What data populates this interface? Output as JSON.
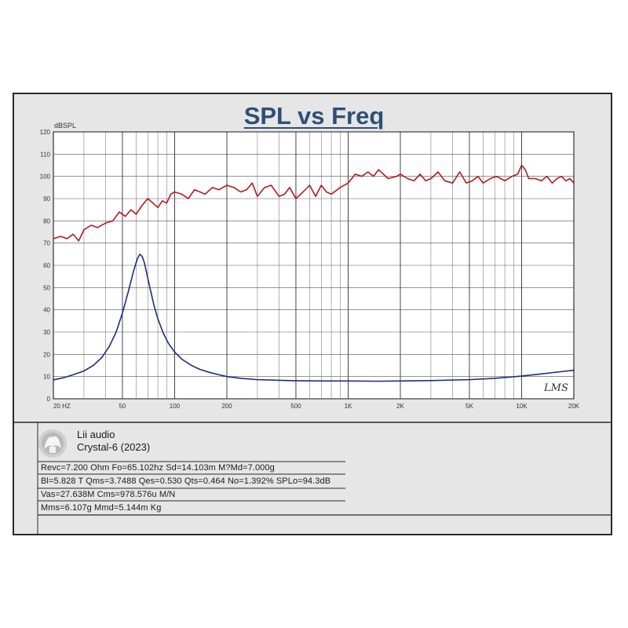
{
  "chart_data": {
    "type": "line",
    "title": "SPL vs Freq",
    "ylabel": "dBSPL",
    "xlabel": "",
    "xscale": "log",
    "xlim": [
      20,
      20000
    ],
    "ylim": [
      0,
      120
    ],
    "grid": true,
    "yticks": [
      0,
      10,
      20,
      30,
      40,
      50,
      60,
      70,
      80,
      90,
      100,
      110,
      120
    ],
    "xtick_values": [
      20,
      50,
      100,
      200,
      500,
      1000,
      2000,
      5000,
      10000,
      20000
    ],
    "xtick_labels": [
      "20  HZ",
      "50",
      "100",
      "200",
      "500",
      "1K",
      "2K",
      "5K",
      "10K",
      "20K"
    ],
    "series": [
      {
        "color": "#b01b22",
        "x": [
          20,
          22,
          24,
          26,
          28,
          30,
          33,
          36,
          40,
          44,
          48,
          52,
          56,
          60,
          65,
          70,
          75,
          80,
          85,
          90,
          95,
          100,
          110,
          120,
          130,
          140,
          150,
          165,
          180,
          200,
          220,
          240,
          260,
          280,
          300,
          330,
          360,
          400,
          430,
          460,
          500,
          550,
          600,
          650,
          700,
          750,
          800,
          900,
          1000,
          1100,
          1200,
          1300,
          1400,
          1500,
          1700,
          1900,
          2000,
          2200,
          2400,
          2600,
          2800,
          3000,
          3300,
          3600,
          4000,
          4400,
          4800,
          5200,
          5600,
          6000,
          6600,
          7200,
          8000,
          8800,
          9500,
          10000,
          10500,
          11000,
          12000,
          13000,
          14000,
          15000,
          16000,
          17000,
          18000,
          19000,
          20000
        ],
        "y": [
          72,
          73,
          72,
          74,
          71,
          76,
          78,
          77,
          79,
          80,
          84,
          82,
          85,
          83,
          87,
          90,
          88,
          86,
          89,
          88,
          92,
          93,
          92,
          90,
          94,
          93,
          92,
          95,
          94,
          96,
          95,
          93,
          94,
          97,
          91,
          95,
          96,
          91,
          92,
          95,
          90,
          93,
          96,
          91,
          96,
          93,
          92,
          95,
          97,
          101,
          100,
          102,
          100,
          103,
          99,
          100,
          101,
          99,
          98,
          101,
          98,
          99,
          102,
          98,
          97,
          102,
          97,
          98,
          100,
          97,
          99,
          100,
          98,
          100,
          101,
          105,
          103,
          99,
          99,
          98,
          100,
          97,
          99,
          100,
          98,
          99,
          97
        ]
      },
      {
        "color": "#1e2d80",
        "x": [
          20,
          23,
          26,
          30,
          34,
          38,
          42,
          46,
          50,
          54,
          58,
          61,
          63,
          65,
          67,
          69,
          72,
          76,
          80,
          86,
          92,
          100,
          110,
          125,
          140,
          160,
          180,
          200,
          240,
          300,
          400,
          500,
          700,
          1000,
          1500,
          2000,
          3000,
          5000,
          7000,
          10000,
          13000,
          16000,
          20000
        ],
        "y": [
          8.5,
          9.5,
          10.8,
          12.5,
          15,
          18.5,
          23.5,
          30,
          38.5,
          48,
          57.5,
          63,
          65,
          64,
          61,
          56.5,
          50,
          42,
          36,
          29.5,
          25,
          21,
          17.8,
          15,
          13.2,
          11.8,
          10.8,
          10,
          9.2,
          8.6,
          8.3,
          8.1,
          8,
          8,
          7.9,
          8,
          8.2,
          8.6,
          9.2,
          10.2,
          11.2,
          12,
          12.8
        ]
      }
    ]
  },
  "watermark": "LMS",
  "info": {
    "brand": "Lii audio",
    "model": "Crystal-6 (2023)",
    "line1": "Revc=7.200 Ohm Fo=65.102hz Sd=14.103m M?Md=7.000g",
    "line2": "Bl=5.828 T Qms=3.7488  Qes=0.530  Qts=0.464 No=1.392% SPLo=94.3dB",
    "line3": "Vas=27.638M Cms=978.576u M/N",
    "line4": "Mms=6.107g Mmd=5.144m Kg"
  }
}
